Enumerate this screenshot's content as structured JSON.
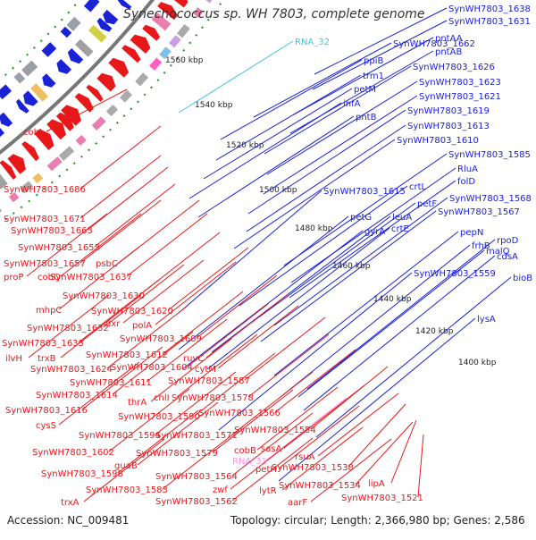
{
  "title": "Synechococcus sp. WH 7803, complete genome",
  "footer": {
    "accession": "Accession: NC_009481",
    "summary": "Topology: circular; Length: 2,366,980 bp; Genes: 2,586"
  },
  "colors": {
    "forward_strand": "#e8181a",
    "reverse_strand": "#1a22d8",
    "rna": "#44c4dc",
    "pink_label": "#ff90e8",
    "backbone": "#777777",
    "dotted_ring": "#1f8f1f"
  },
  "ticks": [
    "1560 kbp",
    "1540 kbp",
    "1520 kbp",
    "1500 kbp",
    "1480 kbp",
    "1460 kbp",
    "1440 kbp",
    "1420 kbp",
    "1400 kbp"
  ],
  "labels_right": [
    "SynWH7803_1638",
    "SynWH7803_1631",
    "RNA_32",
    "SynWH7803_1662",
    "pntAA",
    "ppiB",
    "pntAB",
    "trm1",
    "SynWH7803_1626",
    "petM",
    "SynWH7803_1623",
    "infA",
    "SynWH7803_1621",
    "pntB",
    "SynWH7803_1619",
    "SynWH7803_1613",
    "SynWH7803_1610",
    "SynWH7803_1585",
    "RluA",
    "folD",
    "crtL",
    "SynWH7803_1615",
    "petF",
    "SynWH7803_1568",
    "SynWH7803_1567",
    "petG",
    "leuA",
    "gyrA",
    "crtE",
    "pepN",
    "malQ",
    "rpoD",
    "frhB",
    "cdsA",
    "SynWH7803_1559",
    "bioB",
    "lysA"
  ],
  "labels_left": [
    "cobL",
    "SynWH7803_1686",
    "SynWH7803_1671",
    "SynWH7803_1663",
    "SynWH7803_1653",
    "SynWH7803_1657",
    "psbC",
    "proP",
    "cobQ",
    "SynWH7803_1637",
    "SynWH7803_1630",
    "mhpC",
    "SynWH7803_1620",
    "SynWH7803_1632",
    "dxr",
    "polA",
    "SynWH7803_1633",
    "SynWH7803_1609",
    "ilvH",
    "trxB",
    "SynWH7803_1612",
    "ruvC",
    "SynWH7803_1624",
    "SynWH7803_1604",
    "cytM",
    "SynWH7803_1611",
    "SynWH7803_1587",
    "chlI",
    "SynWH7803_1614",
    "thrA",
    "SynWH7803_1578",
    "SynWH7803_1616",
    "SynWH7803_1590",
    "SynWH7803_1566",
    "cysS",
    "SynWH7803_1594",
    "SynWH7803_1571",
    "SynWH7803_1554",
    "cobB",
    "sasA",
    "SynWH7803_1602",
    "SynWH7803_1579",
    "RNA_31",
    "petH",
    "rsuA",
    "SynWH7803_1598",
    "guaB",
    "SynWH7803_1538",
    "SynWH7803_1564",
    "zwf",
    "lytR",
    "SynWH7803_1534",
    "SynWH7803_1583",
    "lipA",
    "trxA",
    "SynWH7803_1562",
    "aarF",
    "SynWH7803_1521"
  ]
}
